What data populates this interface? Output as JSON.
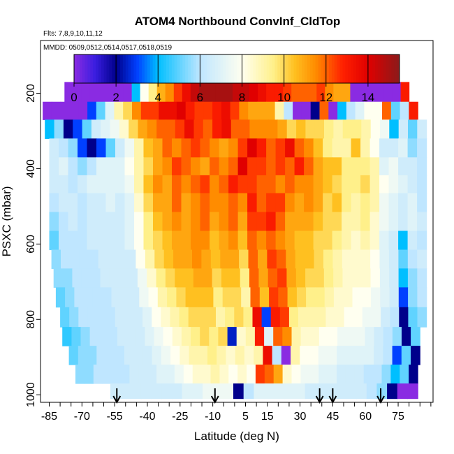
{
  "chart_data": {
    "type": "heatmap",
    "title": "ATOM4 Northbound ConvInf_CldTop",
    "flights_note": "Flts: 7,8,9,10,11,12",
    "dates_note": "MMDD: 0509,0512,0514,0517,0518,0519",
    "xlabel": "Latitude (deg N)",
    "ylabel": "PSXC (mbar)",
    "xlim": [
      -89,
      91
    ],
    "ylim": [
      1020,
      60
    ],
    "y_reversed": true,
    "x_ticks": [
      -85,
      -70,
      -55,
      -40,
      -25,
      -10,
      5,
      15,
      30,
      45,
      60,
      75
    ],
    "y_ticks": [
      200,
      400,
      600,
      800,
      1000
    ],
    "colorbar": {
      "range": [
        0,
        15.5
      ],
      "ticks": [
        0,
        2,
        4,
        6,
        8,
        10,
        12,
        14
      ],
      "stops": [
        {
          "v": 0,
          "c": "#8a2be2"
        },
        {
          "v": 1,
          "c": "#3a1ee0"
        },
        {
          "v": 2,
          "c": "#00008b"
        },
        {
          "v": 3,
          "c": "#0040ff"
        },
        {
          "v": 4,
          "c": "#00bfff"
        },
        {
          "v": 6,
          "c": "#bfe6ff"
        },
        {
          "v": 8,
          "c": "#fffff0"
        },
        {
          "v": 9.5,
          "c": "#fff08a"
        },
        {
          "v": 10.5,
          "c": "#ffc020"
        },
        {
          "v": 11.5,
          "c": "#ff8c00"
        },
        {
          "v": 12.8,
          "c": "#ff2000"
        },
        {
          "v": 14,
          "c": "#e00000"
        },
        {
          "v": 15.5,
          "c": "#8b1a1a"
        }
      ]
    },
    "grid": false,
    "arrows_lat": [
      -54,
      -9,
      39,
      45,
      67
    ],
    "rows": [
      {
        "p": 200,
        "x0": -78,
        "x1": 80,
        "vals": [
          0,
          0,
          0,
          0,
          0,
          0,
          0,
          0,
          4.0,
          8.0,
          9.5,
          10.8,
          11.5,
          12.5,
          13.5,
          14.5,
          15.0,
          15.0,
          15.0,
          15.0,
          14.5,
          14.5,
          14.0,
          13.5,
          13.0,
          13.0,
          12.5,
          12.0,
          12.0,
          12.0,
          12.5,
          11.5,
          11.0,
          11.0,
          0,
          0,
          0,
          0,
          0,
          0,
          13.0
        ]
      },
      {
        "p": 245,
        "x0": -88,
        "x1": 84,
        "vals": [
          0,
          0,
          0,
          0,
          0,
          3.0,
          5.0,
          7.0,
          9.0,
          10.0,
          11.5,
          12.5,
          12.5,
          13.5,
          13.5,
          14.0,
          13.0,
          12.5,
          12.5,
          13.0,
          13.5,
          12.5,
          11.5,
          11.0,
          11.0,
          11.0,
          9.0,
          6.0,
          0,
          0,
          2.0,
          12.0,
          0,
          4.0,
          6.0,
          7.0,
          8.0,
          8.0,
          12.0,
          5.0,
          6.0,
          13.0
        ]
      },
      {
        "p": 295,
        "x0": -87,
        "x1": 88,
        "vals": [
          4.0,
          5.5,
          2.0,
          3.0,
          5.0,
          6.5,
          7.0,
          7.5,
          8.5,
          10.0,
          11.0,
          11.5,
          12.0,
          12.0,
          12.5,
          13.5,
          12.5,
          12.0,
          13.0,
          13.5,
          12.0,
          12.0,
          11.5,
          11.5,
          11.5,
          11.0,
          10.0,
          10.5,
          10.0,
          10.0,
          9.5,
          9.0,
          9.5,
          9.5,
          9.0,
          8.0,
          7.5,
          4.0,
          6.5,
          5.0,
          6.5
        ]
      },
      {
        "p": 345,
        "x0": -85,
        "x1": 88,
        "vals": [
          6.5,
          6.0,
          5.5,
          3.0,
          2.0,
          3.0,
          5.0,
          6.5,
          7.5,
          9.0,
          10.5,
          11.0,
          12.0,
          11.5,
          12.0,
          12.5,
          12.0,
          11.5,
          11.0,
          11.5,
          12.5,
          14.0,
          13.0,
          12.0,
          12.5,
          13.5,
          12.0,
          11.5,
          10.5,
          9.5,
          9.0,
          9.0,
          10.5,
          9.0,
          8.0,
          6.5,
          6.5,
          7.0,
          5.5,
          6.0
        ]
      },
      {
        "p": 395,
        "x0": -85,
        "x1": 88,
        "vals": [
          6.5,
          7.0,
          6.0,
          5.5,
          6.0,
          7.0,
          7.0,
          7.0,
          8.0,
          9.0,
          10.0,
          11.0,
          11.5,
          12.5,
          12.0,
          11.5,
          11.0,
          12.0,
          11.5,
          12.0,
          14.0,
          12.5,
          12.5,
          12.0,
          12.5,
          12.0,
          13.0,
          12.0,
          11.0,
          10.5,
          10.5,
          9.5,
          9.5,
          9.5,
          9.0,
          7.0,
          7.5,
          6.5,
          6.5,
          6.0
        ]
      },
      {
        "p": 440,
        "x0": -85,
        "x1": 88,
        "vals": [
          6.5,
          6.5,
          6.0,
          6.5,
          7.0,
          7.0,
          7.0,
          7.0,
          7.5,
          9.0,
          10.5,
          11.5,
          11.0,
          12.0,
          11.5,
          12.0,
          12.5,
          11.5,
          12.0,
          13.0,
          12.5,
          12.5,
          12.0,
          12.0,
          11.5,
          12.0,
          11.5,
          11.5,
          11.0,
          10.5,
          10.0,
          9.5,
          9.5,
          10.0,
          9.0,
          8.0,
          7.5,
          7.0,
          6.5,
          6.0
        ]
      },
      {
        "p": 490,
        "x0": -85,
        "x1": 88,
        "vals": [
          6.0,
          6.5,
          6.5,
          6.0,
          6.5,
          6.5,
          7.0,
          6.5,
          7.0,
          8.5,
          10.0,
          11.0,
          11.0,
          12.0,
          11.0,
          11.5,
          12.0,
          11.5,
          11.5,
          12.0,
          11.5,
          13.0,
          12.0,
          12.5,
          12.5,
          11.5,
          11.0,
          11.5,
          11.0,
          10.0,
          10.5,
          9.5,
          9.0,
          9.5,
          9.0,
          7.5,
          7.0,
          6.5,
          7.0,
          6.0
        ]
      },
      {
        "p": 540,
        "x0": -85,
        "x1": 88,
        "vals": [
          5.5,
          6.0,
          6.5,
          6.0,
          6.5,
          6.5,
          6.5,
          6.5,
          7.0,
          8.0,
          9.5,
          10.5,
          11.0,
          11.5,
          11.0,
          11.5,
          12.0,
          11.0,
          11.5,
          12.0,
          11.0,
          12.5,
          12.5,
          13.0,
          12.0,
          11.0,
          11.0,
          11.0,
          10.5,
          10.0,
          10.0,
          9.0,
          9.0,
          9.5,
          8.5,
          7.5,
          7.0,
          6.5,
          7.0,
          6.5
        ]
      },
      {
        "p": 590,
        "x0": -85,
        "x1": 88,
        "vals": [
          5.0,
          6.0,
          6.0,
          6.0,
          6.5,
          6.5,
          6.5,
          6.5,
          7.0,
          8.0,
          9.5,
          10.0,
          10.5,
          11.0,
          11.0,
          11.5,
          11.5,
          10.5,
          11.0,
          11.5,
          10.5,
          12.0,
          11.5,
          12.0,
          11.5,
          11.0,
          10.5,
          10.5,
          10.0,
          10.0,
          9.5,
          9.0,
          8.5,
          9.0,
          8.5,
          7.0,
          6.5,
          4.0,
          6.5,
          6.0
        ]
      },
      {
        "p": 640,
        "x0": -84,
        "x1": 88,
        "vals": [
          5.5,
          6.0,
          6.0,
          6.0,
          6.0,
          6.5,
          6.5,
          6.5,
          6.5,
          8.0,
          9.0,
          10.0,
          10.5,
          11.0,
          11.0,
          11.5,
          11.0,
          10.5,
          11.0,
          11.0,
          10.0,
          12.0,
          11.0,
          12.5,
          12.0,
          11.0,
          10.5,
          10.5,
          10.0,
          9.5,
          9.0,
          8.5,
          8.5,
          8.5,
          8.0,
          7.0,
          6.5,
          5.0,
          6.0,
          6.5
        ]
      },
      {
        "p": 690,
        "x0": -83,
        "x1": 88,
        "vals": [
          5.5,
          5.5,
          6.0,
          6.0,
          6.0,
          6.5,
          6.5,
          6.5,
          6.5,
          7.5,
          8.5,
          9.5,
          10.0,
          10.5,
          10.5,
          11.0,
          11.0,
          10.0,
          10.5,
          10.5,
          9.5,
          12.0,
          11.0,
          12.0,
          12.5,
          11.0,
          10.5,
          10.0,
          10.0,
          9.5,
          9.0,
          8.5,
          8.5,
          8.5,
          8.0,
          7.0,
          6.5,
          4.0,
          5.5,
          6.0
        ]
      },
      {
        "p": 740,
        "x0": -82,
        "x1": 88,
        "vals": [
          5.0,
          5.5,
          6.0,
          6.0,
          6.0,
          6.0,
          6.5,
          6.5,
          6.5,
          7.5,
          8.0,
          9.0,
          9.5,
          10.0,
          10.5,
          10.5,
          10.5,
          9.5,
          10.0,
          10.0,
          9.0,
          12.0,
          10.5,
          12.5,
          12.0,
          10.5,
          10.0,
          9.5,
          9.5,
          9.0,
          8.5,
          8.5,
          8.0,
          8.0,
          7.5,
          7.0,
          6.5,
          3.0,
          5.5,
          6.0
        ]
      },
      {
        "p": 795,
        "x0": -80,
        "x1": 88,
        "vals": [
          5.0,
          5.5,
          6.0,
          6.0,
          6.0,
          6.0,
          6.5,
          6.5,
          6.5,
          7.0,
          8.0,
          8.5,
          9.0,
          9.5,
          10.0,
          10.0,
          10.0,
          9.0,
          9.5,
          10.0,
          9.5,
          13.5,
          3.0,
          13.0,
          12.5,
          9.5,
          9.0,
          9.0,
          9.0,
          8.5,
          8.5,
          8.0,
          8.0,
          7.5,
          7.5,
          6.5,
          6.0,
          2.0,
          5.0,
          5.5
        ]
      },
      {
        "p": 845,
        "x0": -79,
        "x1": 85,
        "vals": [
          4.5,
          5.0,
          5.5,
          6.0,
          6.0,
          6.0,
          6.5,
          6.5,
          6.5,
          7.0,
          7.5,
          8.0,
          8.5,
          9.0,
          9.5,
          10.0,
          9.5,
          10.0,
          2.5,
          8.5,
          9.0,
          13.0,
          7.0,
          12.0,
          11.5,
          9.0,
          8.5,
          8.5,
          8.0,
          8.0,
          7.5,
          7.5,
          7.5,
          7.0,
          6.5,
          6.0,
          5.5,
          2.0,
          5.0
        ]
      },
      {
        "p": 895,
        "x0": -76,
        "x1": 85,
        "vals": [
          5.0,
          5.5,
          5.5,
          6.0,
          6.0,
          6.0,
          6.5,
          6.5,
          6.5,
          7.0,
          7.5,
          8.0,
          8.5,
          9.0,
          9.0,
          9.5,
          9.0,
          8.5,
          9.0,
          8.5,
          9.0,
          13.5,
          6.0,
          0,
          9.0,
          8.0,
          8.0,
          7.5,
          7.5,
          7.0,
          7.0,
          7.0,
          7.0,
          6.5,
          6.0,
          3.0,
          5.0,
          2.0
        ]
      },
      {
        "p": 945,
        "x0": -73,
        "x1": 84,
        "vals": [
          5.5,
          5.5,
          6.0,
          6.0,
          6.0,
          6.0,
          6.5,
          6.5,
          6.5,
          7.0,
          7.0,
          7.5,
          8.0,
          8.5,
          8.5,
          9.0,
          8.5,
          8.0,
          8.5,
          8.0,
          12.5,
          12.0,
          11.0,
          8.5,
          8.0,
          7.5,
          7.5,
          7.0,
          7.0,
          6.5,
          6.5,
          6.5,
          6.0,
          6.0,
          5.5,
          4.0,
          5.0,
          2.0
        ]
      },
      {
        "p": 995,
        "x0": -57,
        "x1": 84,
        "vals": [
          6.5,
          6.5,
          6.5,
          6.5,
          6.5,
          6.5,
          6.5,
          7.0,
          7.0,
          7.5,
          7.5,
          7.5,
          2.0,
          6.0,
          7.0,
          7.0,
          7.0,
          7.0,
          7.0,
          6.5,
          6.5,
          6.5,
          6.5,
          6.5,
          6.5,
          6.0,
          5.5,
          2.0,
          0,
          0
        ]
      }
    ]
  }
}
